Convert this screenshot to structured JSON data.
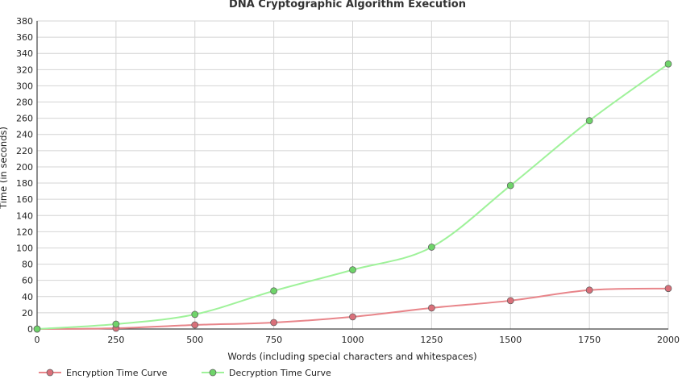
{
  "chart_data": {
    "type": "line",
    "title": "DNA Cryptographic Algorithm Execution",
    "xlabel": "Words (including special characters and whitespaces)",
    "ylabel": "Time (in seconds)",
    "x": [
      0,
      250,
      500,
      750,
      1000,
      1250,
      1500,
      1750,
      2000
    ],
    "xlim": [
      0,
      2000
    ],
    "ylim": [
      0,
      380
    ],
    "x_ticks": [
      0,
      250,
      500,
      750,
      1000,
      1250,
      1500,
      1750,
      2000
    ],
    "y_ticks": [
      0,
      20,
      40,
      60,
      80,
      100,
      120,
      140,
      160,
      180,
      200,
      220,
      240,
      260,
      280,
      300,
      320,
      340,
      360,
      380
    ],
    "grid": true,
    "legend_position": "bottom-left",
    "series": [
      {
        "name": "Encryption Time Curve",
        "color": "#e8858a",
        "marker": "#d9707a",
        "values": [
          0,
          1,
          5,
          8,
          15,
          26,
          35,
          48,
          50
        ]
      },
      {
        "name": "Decryption Time Curve",
        "color": "#9ff29a",
        "marker": "#6fd46a",
        "values": [
          0,
          6,
          18,
          47,
          73,
          101,
          177,
          257,
          327
        ]
      }
    ]
  }
}
